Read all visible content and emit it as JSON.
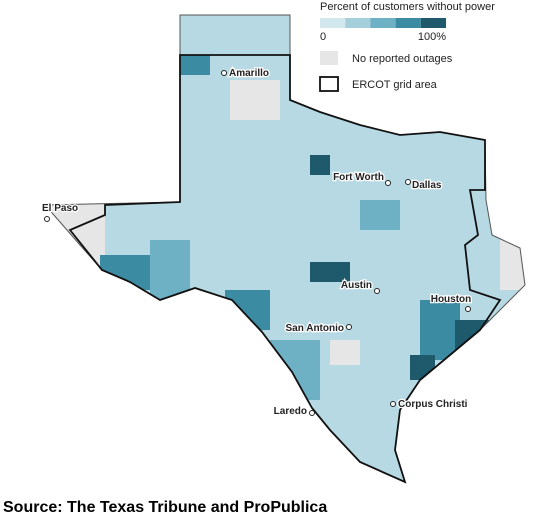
{
  "legend": {
    "title": "Percent of customers without power",
    "min_label": "0",
    "max_label": "100%",
    "colors": [
      "#d3e7ee",
      "#a6cfdc",
      "#6eb0c4",
      "#3b8ca3",
      "#1e5a6b"
    ],
    "no_data_label": "No reported outages",
    "no_data_color": "#e6e6e6",
    "ercot_label": "ERCOT grid area"
  },
  "cities": [
    "Amarillo",
    "Fort Worth",
    "Dallas",
    "El Paso",
    "Austin",
    "Houston",
    "San Antonio",
    "Corpus Christi",
    "Laredo"
  ],
  "source": "Source: The Texas Tribune and ProPublica"
}
